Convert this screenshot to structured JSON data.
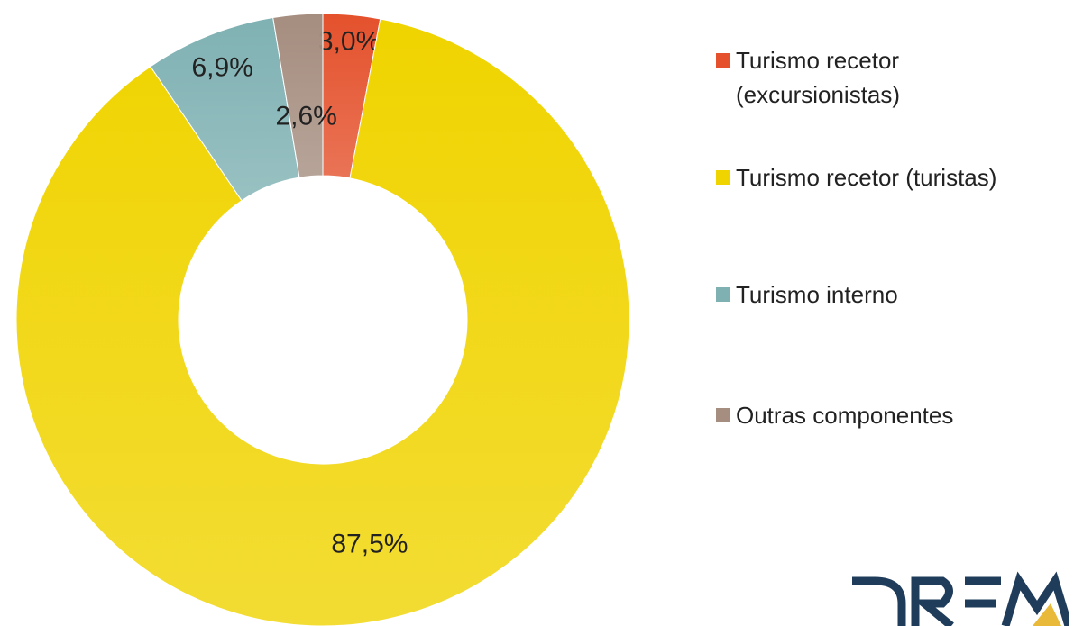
{
  "chart_data": {
    "type": "donut",
    "categories": [
      "Turismo recetor (excursionistas)",
      "Turismo recetor (turistas)",
      "Turismo interno",
      "Outras componentes"
    ],
    "values": [
      3.0,
      87.5,
      6.9,
      2.6
    ],
    "value_labels": [
      "3,0%",
      "87,5%",
      "6,9%",
      "2,6%"
    ],
    "colors": [
      "#e4512c",
      "#f0d400",
      "#7fb1b3",
      "#a58d7f"
    ]
  }
}
